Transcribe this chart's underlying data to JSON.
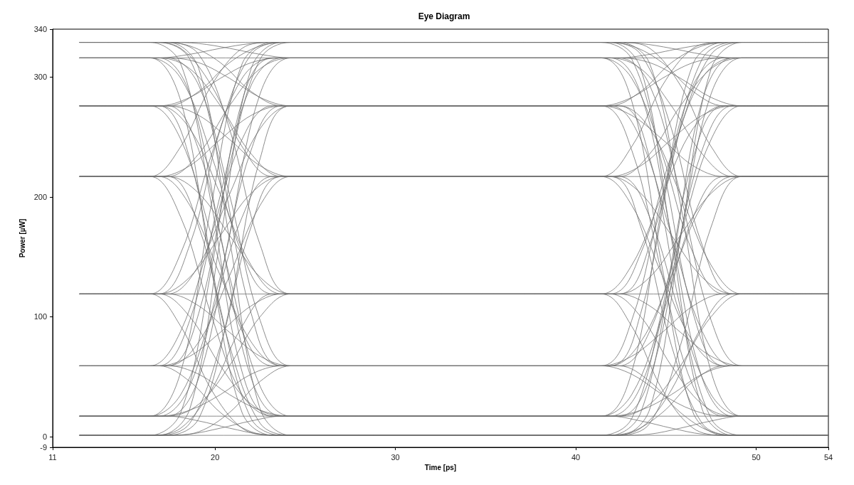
{
  "chart_data": {
    "type": "line",
    "title": "Eye Diagram",
    "xlabel": "Time [ps]",
    "ylabel": "Power [µW]",
    "xlim": [
      11,
      54
    ],
    "ylim": [
      -9,
      340
    ],
    "xticks": [
      11,
      20,
      30,
      40,
      50,
      54
    ],
    "yticks": [
      -9,
      0,
      100,
      200,
      300,
      340
    ],
    "grid": false,
    "marker": "none",
    "line_style": "solid",
    "series": [
      {
        "color": "#6e6e6e",
        "x": [
          12.5,
          54
        ],
        "values": [
          1,
          1
        ]
      },
      {
        "color": "#6e6e6e",
        "x": [
          12.5,
          16.9,
          18.6,
          20.3,
          22,
          23.7,
          54
        ],
        "values": [
          1,
          1,
          2,
          7,
          13,
          17,
          17
        ]
      },
      {
        "color": "#6e6e6e",
        "x": [
          12.5,
          17.4,
          19.1,
          20.8,
          22.5,
          24.2,
          54
        ],
        "values": [
          1,
          1,
          4,
          20,
          46,
          59,
          59
        ]
      },
      {
        "color": "#6e6e6e",
        "x": [
          12.5,
          16.4,
          18.1,
          19.8,
          21.5,
          23.2,
          54
        ],
        "values": [
          1,
          1,
          7,
          39,
          92,
          119,
          119
        ]
      },
      {
        "color": "#6e6e6e",
        "x": [
          12.5,
          16.9,
          18.6,
          20.3,
          22,
          23.7,
          54
        ],
        "values": [
          1,
          1,
          11,
          76,
          175,
          217,
          217
        ]
      },
      {
        "color": "#6e6e6e",
        "x": [
          12.5,
          17.4,
          19.1,
          20.8,
          22.5,
          24.2,
          54
        ],
        "values": [
          1,
          1,
          15,
          107,
          232,
          276,
          276
        ]
      },
      {
        "color": "#6e6e6e",
        "x": [
          12.5,
          16.4,
          18.1,
          19.8,
          21.5,
          23.2,
          54
        ],
        "values": [
          1,
          1,
          20,
          140,
          280,
          316,
          316
        ]
      },
      {
        "color": "#6e6e6e",
        "x": [
          12.5,
          16.9,
          18.6,
          20.3,
          22,
          23.7,
          54
        ],
        "values": [
          1,
          1,
          23,
          165,
          307,
          329,
          329
        ]
      },
      {
        "color": "#6e6e6e",
        "x": [
          12.5,
          17.4,
          19.1,
          20.8,
          22.5,
          24.2,
          42.4,
          44.1,
          45.8,
          47.5,
          49.2,
          54
        ],
        "values": [
          17,
          17,
          13,
          7,
          2,
          1,
          1,
          2,
          7,
          13,
          17,
          17
        ]
      },
      {
        "color": "#6e6e6e",
        "x": [
          12.5,
          41.9,
          43.6,
          45.3,
          47,
          48.7,
          54
        ],
        "values": [
          17,
          17,
          22,
          35,
          52,
          59,
          59
        ]
      },
      {
        "color": "#6e6e6e",
        "x": [
          12.5,
          16.9,
          18.6,
          20.3,
          22,
          23.7,
          41.4,
          43.1,
          44.8,
          46.5,
          48.2,
          54
        ],
        "values": [
          17,
          17,
          22,
          35,
          52,
          59,
          59,
          67,
          87,
          109,
          119,
          119
        ]
      },
      {
        "color": "#6e6e6e",
        "x": [
          12.5,
          17.4,
          19.1,
          20.8,
          22.5,
          24.2,
          42.4,
          44.1,
          45.8,
          47.5,
          49.2,
          54
        ],
        "values": [
          17,
          17,
          27,
          59,
          100,
          119,
          119,
          133,
          168,
          203,
          217,
          217
        ]
      },
      {
        "color": "#6e6e6e",
        "x": [
          12.5,
          16.4,
          18.1,
          19.8,
          21.5,
          23.2,
          41.9,
          43.6,
          45.3,
          47,
          48.7,
          54
        ],
        "values": [
          17,
          17,
          35,
          101,
          183,
          217,
          217,
          226,
          248,
          268,
          276,
          276
        ]
      },
      {
        "color": "#6e6e6e",
        "x": [
          12.5,
          16.9,
          18.6,
          20.3,
          22,
          23.7,
          41.4,
          43.1,
          44.8,
          46.5,
          48.2,
          54
        ],
        "values": [
          17,
          17,
          42,
          134,
          239,
          276,
          276,
          283,
          299,
          312,
          316,
          316
        ]
      },
      {
        "color": "#6e6e6e",
        "x": [
          12.5,
          17.4,
          19.1,
          20.8,
          22.5,
          24.2,
          42.4,
          44.1,
          45.8,
          47.5,
          49.2,
          54
        ],
        "values": [
          17,
          17,
          49,
          168,
          286,
          316,
          316,
          319,
          324,
          328,
          329,
          329
        ]
      },
      {
        "color": "#6e6e6e",
        "x": [
          12.5,
          16.4,
          18.1,
          19.8,
          21.5,
          23.2,
          41.9,
          43.6,
          45.3,
          47,
          48.7,
          54
        ],
        "values": [
          17,
          17,
          54,
          194,
          311,
          329,
          329,
          307,
          165,
          23,
          1,
          1
        ]
      },
      {
        "color": "#6e6e6e",
        "x": [
          12.5,
          16.9,
          18.6,
          20.3,
          22,
          23.7,
          41.4,
          43.1,
          44.8,
          46.5,
          48.2,
          54
        ],
        "values": [
          59,
          59,
          46,
          20,
          4,
          1,
          1,
          4,
          20,
          46,
          59,
          59
        ]
      },
      {
        "color": "#6e6e6e",
        "x": [
          12.5,
          17.4,
          19.1,
          20.8,
          22.5,
          24.2,
          42.4,
          44.1,
          45.8,
          47.5,
          49.2,
          54
        ],
        "values": [
          59,
          59,
          52,
          35,
          22,
          17,
          17,
          27,
          59,
          100,
          119,
          119
        ]
      },
      {
        "color": "#6e6e6e",
        "x": [
          12.5,
          41.9,
          43.6,
          45.3,
          47,
          48.7,
          54
        ],
        "values": [
          59,
          59,
          79,
          134,
          193,
          217,
          217
        ]
      },
      {
        "color": "#6e6e6e",
        "x": [
          12.5,
          16.9,
          18.6,
          20.3,
          22,
          23.7,
          41.4,
          43.1,
          44.8,
          46.5,
          48.2,
          54
        ],
        "values": [
          59,
          59,
          67,
          87,
          109,
          119,
          119,
          143,
          202,
          257,
          276,
          276
        ]
      },
      {
        "color": "#6e6e6e",
        "x": [
          12.5,
          17.4,
          19.1,
          20.8,
          22.5,
          24.2,
          42.4,
          44.1,
          45.8,
          47.5,
          49.2,
          54
        ],
        "values": [
          59,
          59,
          79,
          134,
          193,
          217,
          217,
          236,
          276,
          307,
          316,
          316
        ]
      },
      {
        "color": "#6e6e6e",
        "x": [
          12.5,
          16.4,
          18.1,
          19.8,
          21.5,
          23.2,
          41.9,
          43.6,
          45.3,
          47,
          48.7,
          54
        ],
        "values": [
          59,
          59,
          88,
          168,
          248,
          276,
          276,
          288,
          312,
          326,
          329,
          329
        ]
      },
      {
        "color": "#6e6e6e",
        "x": [
          12.5,
          16.9,
          18.6,
          20.3,
          22,
          23.7,
          41.4,
          43.1,
          44.8,
          46.5,
          48.2,
          54
        ],
        "values": [
          59,
          59,
          97,
          202,
          293,
          316,
          316,
          280,
          140,
          20,
          1,
          1
        ]
      },
      {
        "color": "#6e6e6e",
        "x": [
          12.5,
          17.4,
          19.1,
          20.8,
          22.5,
          24.2,
          42.4,
          44.1,
          45.8,
          47.5,
          49.2,
          54
        ],
        "values": [
          59,
          59,
          103,
          226,
          315,
          329,
          329,
          311,
          194,
          54,
          17,
          17
        ]
      },
      {
        "color": "#6e6e6e",
        "x": [
          12.5,
          16.4,
          18.1,
          19.8,
          21.5,
          23.2,
          41.9,
          43.6,
          45.3,
          47,
          48.7,
          54
        ],
        "values": [
          119,
          119,
          92,
          39,
          7,
          1,
          1,
          7,
          39,
          92,
          119,
          119
        ]
      },
      {
        "color": "#6e6e6e",
        "x": [
          12.5,
          16.9,
          18.6,
          20.3,
          22,
          23.7,
          41.4,
          43.1,
          44.8,
          46.5,
          48.2,
          54
        ],
        "values": [
          119,
          119,
          100,
          59,
          27,
          17,
          17,
          35,
          101,
          183,
          217,
          217
        ]
      },
      {
        "color": "#6e6e6e",
        "x": [
          12.5,
          17.4,
          19.1,
          20.8,
          22.5,
          24.2,
          42.4,
          44.1,
          45.8,
          47.5,
          49.2,
          54
        ],
        "values": [
          119,
          119,
          109,
          87,
          67,
          59,
          59,
          88,
          168,
          248,
          276,
          276
        ]
      },
      {
        "color": "#6e6e6e",
        "x": [
          12.5,
          41.9,
          43.6,
          45.3,
          47,
          48.7,
          54
        ],
        "values": [
          119,
          119,
          153,
          235,
          299,
          316,
          316
        ]
      },
      {
        "color": "#6e6e6e",
        "x": [
          12.5,
          16.9,
          18.6,
          20.3,
          22,
          23.7,
          41.4,
          43.1,
          44.8,
          46.5,
          48.2,
          54
        ],
        "values": [
          119,
          119,
          133,
          168,
          203,
          217,
          217,
          242,
          293,
          324,
          329,
          329
        ]
      },
      {
        "color": "#6e6e6e",
        "x": [
          12.5,
          17.4,
          19.1,
          20.8,
          22.5,
          24.2,
          42.4,
          44.1,
          45.8,
          47.5,
          49.2,
          54
        ],
        "values": [
          119,
          119,
          143,
          202,
          257,
          276,
          276,
          232,
          107,
          15,
          1,
          1
        ]
      },
      {
        "color": "#6e6e6e",
        "x": [
          12.5,
          16.4,
          18.1,
          19.8,
          21.5,
          23.2,
          41.9,
          43.6,
          45.3,
          47,
          48.7,
          54
        ],
        "values": [
          119,
          119,
          153,
          235,
          299,
          316,
          316,
          286,
          168,
          49,
          17,
          17
        ]
      },
      {
        "color": "#6e6e6e",
        "x": [
          12.5,
          16.9,
          18.6,
          20.3,
          22,
          23.7,
          41.4,
          43.1,
          44.8,
          46.5,
          48.2,
          54
        ],
        "values": [
          119,
          119,
          160,
          257,
          319,
          329,
          329,
          315,
          226,
          103,
          59,
          59
        ]
      },
      {
        "color": "#6e6e6e",
        "x": [
          12.5,
          17.4,
          19.1,
          20.8,
          22.5,
          24.2,
          42.4,
          44.1,
          45.8,
          47.5,
          49.2,
          54
        ],
        "values": [
          217,
          217,
          175,
          76,
          11,
          1,
          1,
          11,
          76,
          175,
          217,
          217
        ]
      },
      {
        "color": "#6e6e6e",
        "x": [
          12.5,
          16.4,
          18.1,
          19.8,
          21.5,
          23.2,
          41.9,
          43.6,
          45.3,
          47,
          48.7,
          54
        ],
        "values": [
          217,
          217,
          183,
          101,
          35,
          17,
          17,
          42,
          134,
          239,
          276,
          276
        ]
      },
      {
        "color": "#6e6e6e",
        "x": [
          12.5,
          16.9,
          18.6,
          20.3,
          22,
          23.7,
          41.4,
          43.1,
          44.8,
          46.5,
          48.2,
          54
        ],
        "values": [
          217,
          217,
          193,
          134,
          79,
          59,
          59,
          97,
          202,
          293,
          316,
          316
        ]
      },
      {
        "color": "#6e6e6e",
        "x": [
          12.5,
          17.4,
          19.1,
          20.8,
          22.5,
          24.2,
          42.4,
          44.1,
          45.8,
          47.5,
          49.2,
          54
        ],
        "values": [
          217,
          217,
          203,
          168,
          133,
          119,
          119,
          160,
          257,
          319,
          329,
          329
        ]
      },
      {
        "color": "#6e6e6e",
        "x": [
          12.5,
          41.9,
          43.6,
          45.3,
          47,
          48.7,
          54
        ],
        "values": [
          217,
          217,
          175,
          76,
          11,
          1,
          1
        ]
      },
      {
        "color": "#6e6e6e",
        "x": [
          12.5,
          16.9,
          18.6,
          20.3,
          22,
          23.7,
          41.4,
          43.1,
          44.8,
          46.5,
          48.2,
          54
        ],
        "values": [
          217,
          217,
          226,
          248,
          268,
          276,
          276,
          239,
          134,
          42,
          17,
          17
        ]
      },
      {
        "color": "#6e6e6e",
        "x": [
          12.5,
          17.4,
          19.1,
          20.8,
          22.5,
          24.2,
          42.4,
          44.1,
          45.8,
          47.5,
          49.2,
          54
        ],
        "values": [
          217,
          217,
          236,
          276,
          307,
          316,
          316,
          293,
          202,
          97,
          59,
          59
        ]
      },
      {
        "color": "#6e6e6e",
        "x": [
          12.5,
          16.4,
          18.1,
          19.8,
          21.5,
          23.2,
          41.9,
          43.6,
          45.3,
          47,
          48.7,
          54
        ],
        "values": [
          217,
          217,
          242,
          293,
          324,
          329,
          329,
          319,
          257,
          160,
          119,
          119
        ]
      },
      {
        "color": "#6e6e6e",
        "x": [
          12.5,
          16.9,
          18.6,
          20.3,
          22,
          23.7,
          41.4,
          43.1,
          44.8,
          46.5,
          48.2,
          54
        ],
        "values": [
          276,
          276,
          232,
          107,
          15,
          1,
          1,
          15,
          107,
          232,
          276,
          276
        ]
      },
      {
        "color": "#6e6e6e",
        "x": [
          12.5,
          17.4,
          19.1,
          20.8,
          22.5,
          24.2,
          42.4,
          44.1,
          45.8,
          47.5,
          49.2,
          54
        ],
        "values": [
          276,
          276,
          239,
          134,
          42,
          17,
          17,
          49,
          168,
          286,
          316,
          316
        ]
      },
      {
        "color": "#6e6e6e",
        "x": [
          12.5,
          16.4,
          18.1,
          19.8,
          21.5,
          23.2,
          41.9,
          43.6,
          45.3,
          47,
          48.7,
          54
        ],
        "values": [
          276,
          276,
          248,
          168,
          88,
          59,
          59,
          103,
          226,
          315,
          329,
          329
        ]
      },
      {
        "color": "#6e6e6e",
        "x": [
          12.5,
          16.9,
          18.6,
          20.3,
          22,
          23.7,
          41.4,
          43.1,
          44.8,
          46.5,
          48.2,
          54
        ],
        "values": [
          276,
          276,
          257,
          202,
          143,
          119,
          119,
          92,
          39,
          7,
          1,
          1
        ]
      },
      {
        "color": "#6e6e6e",
        "x": [
          12.5,
          17.4,
          19.1,
          20.8,
          22.5,
          24.2,
          42.4,
          44.1,
          45.8,
          47.5,
          49.2,
          54
        ],
        "values": [
          276,
          276,
          268,
          248,
          226,
          217,
          217,
          183,
          101,
          35,
          17,
          17
        ]
      },
      {
        "color": "#6e6e6e",
        "x": [
          12.5,
          41.9,
          43.6,
          45.3,
          47,
          48.7,
          54
        ],
        "values": [
          276,
          276,
          248,
          168,
          88,
          59,
          59
        ]
      },
      {
        "color": "#6e6e6e",
        "x": [
          12.5,
          16.9,
          18.6,
          20.3,
          22,
          23.7,
          41.4,
          43.1,
          44.8,
          46.5,
          48.2,
          54
        ],
        "values": [
          276,
          276,
          283,
          299,
          312,
          316,
          316,
          299,
          235,
          153,
          119,
          119
        ]
      },
      {
        "color": "#6e6e6e",
        "x": [
          12.5,
          17.4,
          19.1,
          20.8,
          22.5,
          24.2,
          42.4,
          44.1,
          45.8,
          47.5,
          49.2,
          54
        ],
        "values": [
          276,
          276,
          288,
          312,
          326,
          329,
          329,
          324,
          293,
          242,
          217,
          217
        ]
      },
      {
        "color": "#6e6e6e",
        "x": [
          12.5,
          16.4,
          18.1,
          19.8,
          21.5,
          23.2,
          41.9,
          43.6,
          45.3,
          47,
          48.7,
          54
        ],
        "values": [
          316,
          316,
          280,
          140,
          20,
          1,
          1,
          20,
          140,
          280,
          316,
          316
        ]
      },
      {
        "color": "#6e6e6e",
        "x": [
          12.5,
          16.9,
          18.6,
          20.3,
          22,
          23.7,
          41.4,
          43.1,
          44.8,
          46.5,
          48.2,
          54
        ],
        "values": [
          316,
          316,
          286,
          168,
          49,
          17,
          17,
          54,
          194,
          311,
          329,
          329
        ]
      },
      {
        "color": "#6e6e6e",
        "x": [
          12.5,
          17.4,
          19.1,
          20.8,
          22.5,
          24.2,
          42.4,
          44.1,
          45.8,
          47.5,
          49.2,
          54
        ],
        "values": [
          316,
          316,
          293,
          202,
          97,
          59,
          59,
          46,
          20,
          4,
          1,
          1
        ]
      },
      {
        "color": "#6e6e6e",
        "x": [
          12.5,
          16.4,
          18.1,
          19.8,
          21.5,
          23.2,
          41.9,
          43.6,
          45.3,
          47,
          48.7,
          54
        ],
        "values": [
          316,
          316,
          299,
          235,
          153,
          119,
          119,
          100,
          59,
          27,
          17,
          17
        ]
      },
      {
        "color": "#6e6e6e",
        "x": [
          12.5,
          16.9,
          18.6,
          20.3,
          22,
          23.7,
          41.4,
          43.1,
          44.8,
          46.5,
          48.2,
          54
        ],
        "values": [
          316,
          316,
          307,
          276,
          236,
          217,
          217,
          193,
          134,
          79,
          59,
          59
        ]
      },
      {
        "color": "#6e6e6e",
        "x": [
          12.5,
          17.4,
          19.1,
          20.8,
          22.5,
          24.2,
          42.4,
          44.1,
          45.8,
          47.5,
          49.2,
          54
        ],
        "values": [
          316,
          316,
          312,
          299,
          283,
          276,
          276,
          257,
          202,
          143,
          119,
          119
        ]
      },
      {
        "color": "#6e6e6e",
        "x": [
          12.5,
          41.9,
          43.6,
          45.3,
          47,
          48.7,
          54
        ],
        "values": [
          316,
          316,
          307,
          276,
          236,
          217,
          217
        ]
      },
      {
        "color": "#6e6e6e",
        "x": [
          12.5,
          16.9,
          18.6,
          20.3,
          22,
          23.7,
          41.4,
          43.1,
          44.8,
          46.5,
          48.2,
          54
        ],
        "values": [
          316,
          316,
          319,
          324,
          328,
          329,
          329,
          326,
          312,
          288,
          276,
          276
        ]
      },
      {
        "color": "#6e6e6e",
        "x": [
          12.5,
          17.4,
          19.1,
          20.8,
          22.5,
          24.2,
          42.4,
          44.1,
          45.8,
          47.5,
          49.2,
          54
        ],
        "values": [
          329,
          329,
          307,
          165,
          23,
          1,
          1,
          23,
          165,
          307,
          329,
          329
        ]
      },
      {
        "color": "#6e6e6e",
        "x": [
          12.5,
          16.4,
          18.1,
          19.8,
          21.5,
          23.2,
          41.9,
          43.6,
          45.3,
          47,
          48.7,
          54
        ],
        "values": [
          329,
          329,
          311,
          194,
          54,
          17,
          17,
          13,
          7,
          2,
          1,
          1
        ]
      },
      {
        "color": "#6e6e6e",
        "x": [
          12.5,
          16.9,
          18.6,
          20.3,
          22,
          23.7,
          41.4,
          43.1,
          44.8,
          46.5,
          48.2,
          54
        ],
        "values": [
          329,
          329,
          315,
          226,
          103,
          59,
          59,
          52,
          35,
          22,
          17,
          17
        ]
      },
      {
        "color": "#6e6e6e",
        "x": [
          12.5,
          17.4,
          19.1,
          20.8,
          22.5,
          24.2,
          42.4,
          44.1,
          45.8,
          47.5,
          49.2,
          54
        ],
        "values": [
          329,
          329,
          319,
          257,
          160,
          119,
          119,
          109,
          87,
          67,
          59,
          59
        ]
      },
      {
        "color": "#6e6e6e",
        "x": [
          12.5,
          16.4,
          18.1,
          19.8,
          21.5,
          23.2,
          41.9,
          43.6,
          45.3,
          47,
          48.7,
          54
        ],
        "values": [
          329,
          329,
          324,
          293,
          242,
          217,
          217,
          203,
          168,
          133,
          119,
          119
        ]
      },
      {
        "color": "#6e6e6e",
        "x": [
          12.5,
          16.9,
          18.6,
          20.3,
          22,
          23.7,
          41.4,
          43.1,
          44.8,
          46.5,
          48.2,
          54
        ],
        "values": [
          329,
          329,
          326,
          312,
          288,
          276,
          276,
          268,
          248,
          226,
          217,
          217
        ]
      },
      {
        "color": "#6e6e6e",
        "x": [
          12.5,
          17.4,
          19.1,
          20.8,
          22.5,
          24.2,
          42.4,
          44.1,
          45.8,
          47.5,
          49.2,
          54
        ],
        "values": [
          329,
          329,
          328,
          324,
          319,
          316,
          316,
          312,
          299,
          283,
          276,
          276
        ]
      },
      {
        "color": "#6e6e6e",
        "x": [
          12.5,
          41.9,
          43.6,
          45.3,
          47,
          48.7,
          54
        ],
        "values": [
          329,
          329,
          328,
          324,
          319,
          316,
          316
        ]
      }
    ]
  }
}
